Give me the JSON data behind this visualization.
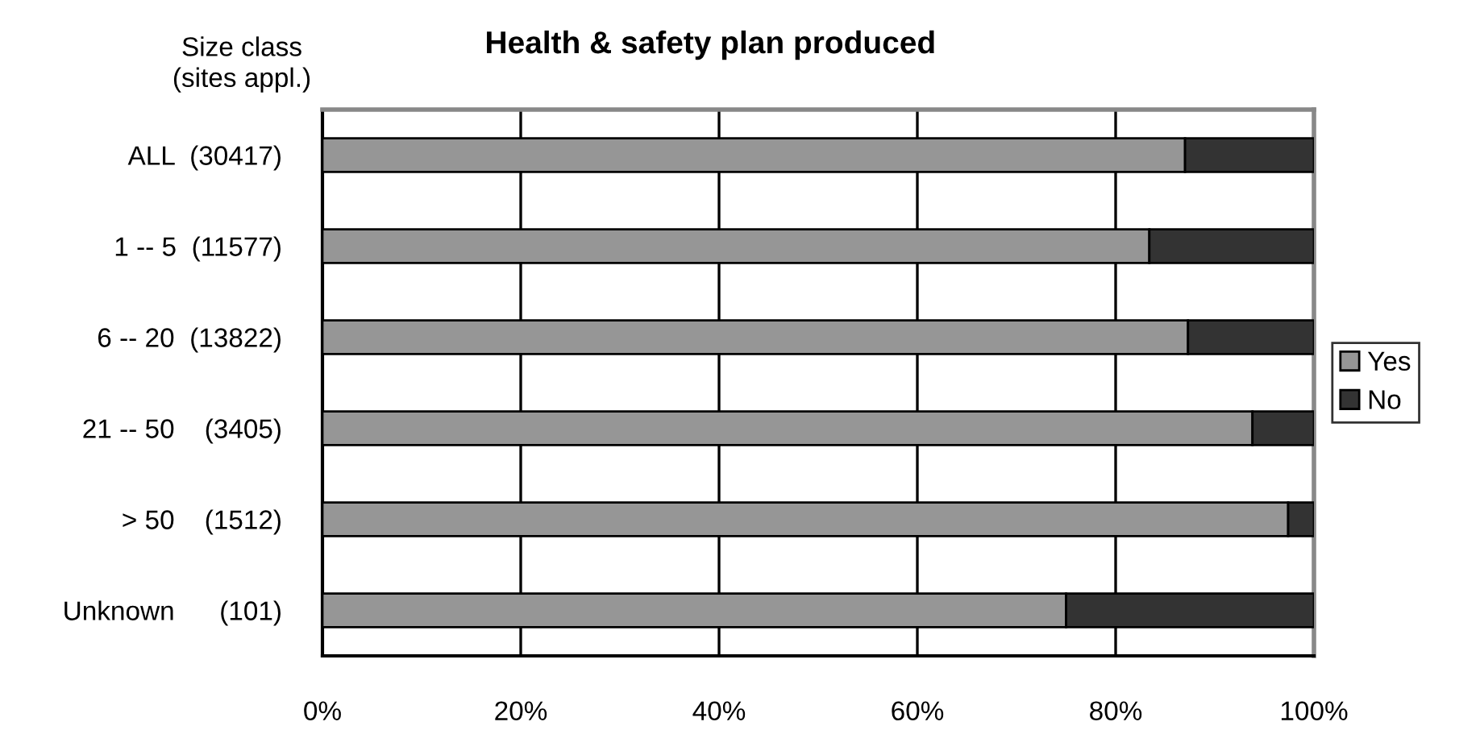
{
  "chart_data": {
    "type": "bar",
    "orientation": "horizontal",
    "stacked": true,
    "title": "Health & safety plan produced",
    "ylabel": "Size class\n(sites appl.)",
    "categories": [
      "ALL  (30417)",
      "1 -- 5  (11577)",
      "6 -- 20  (13822)",
      "21 -- 50    (3405)",
      "> 50    (1512)",
      "Unknown      (101)"
    ],
    "series": [
      {
        "name": "Yes",
        "color": "#969696",
        "values": [
          87.0,
          83.4,
          87.3,
          93.8,
          97.4,
          75.0
        ]
      },
      {
        "name": "No",
        "color": "#333333",
        "values": [
          13.0,
          16.6,
          12.7,
          6.2,
          2.6,
          25.0
        ]
      }
    ],
    "xlim": [
      0,
      100
    ],
    "xticks": [
      {
        "value": 0,
        "label": "0%"
      },
      {
        "value": 20,
        "label": "20%"
      },
      {
        "value": 40,
        "label": "40%"
      },
      {
        "value": 60,
        "label": "60%"
      },
      {
        "value": 80,
        "label": "80%"
      },
      {
        "value": 100,
        "label": "100%"
      }
    ],
    "grid": "x",
    "legend": "right"
  }
}
